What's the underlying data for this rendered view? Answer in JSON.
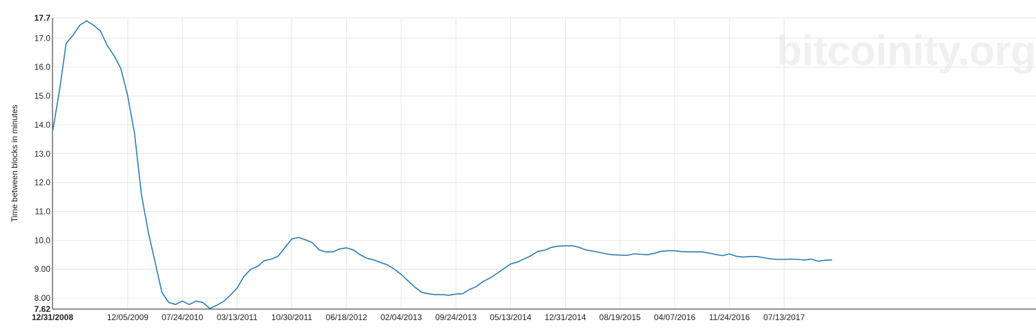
{
  "chart_data": {
    "type": "line",
    "title": "",
    "watermark": "bitcoinity.org",
    "ylabel": "Time between blocks in minutes",
    "xlabel": "",
    "ylim": [
      7.62,
      17.7
    ],
    "y_ticks": [
      {
        "value": 7.62,
        "label": "7.62",
        "bold": true
      },
      {
        "value": 8.0,
        "label": "8.00",
        "bold": false
      },
      {
        "value": 9.0,
        "label": "9.00",
        "bold": false
      },
      {
        "value": 10.0,
        "label": "10.0",
        "bold": false
      },
      {
        "value": 11.0,
        "label": "11.0",
        "bold": false
      },
      {
        "value": 12.0,
        "label": "12.0",
        "bold": false
      },
      {
        "value": 13.0,
        "label": "13.0",
        "bold": false
      },
      {
        "value": 14.0,
        "label": "14.0",
        "bold": false
      },
      {
        "value": 15.0,
        "label": "15.0",
        "bold": false
      },
      {
        "value": 16.0,
        "label": "16.0",
        "bold": false
      },
      {
        "value": 17.0,
        "label": "17.0",
        "bold": false
      },
      {
        "value": 17.7,
        "label": "17.7",
        "bold": true
      }
    ],
    "x_ticks": [
      {
        "index": 0,
        "label": "12/31/2008",
        "bold": true
      },
      {
        "index": 11,
        "label": "12/05/2009",
        "bold": false
      },
      {
        "index": 19,
        "label": "07/24/2010",
        "bold": false
      },
      {
        "index": 27,
        "label": "03/13/2011",
        "bold": false
      },
      {
        "index": 35,
        "label": "10/30/2011",
        "bold": false
      },
      {
        "index": 43,
        "label": "06/18/2012",
        "bold": false
      },
      {
        "index": 51,
        "label": "02/04/2013",
        "bold": false
      },
      {
        "index": 59,
        "label": "09/24/2013",
        "bold": false
      },
      {
        "index": 67,
        "label": "05/13/2014",
        "bold": false
      },
      {
        "index": 75,
        "label": "12/31/2014",
        "bold": false
      },
      {
        "index": 83,
        "label": "08/19/2015",
        "bold": false
      },
      {
        "index": 91,
        "label": "04/07/2016",
        "bold": false
      },
      {
        "index": 99,
        "label": "11/24/2016",
        "bold": false
      },
      {
        "index": 107,
        "label": "07/13/2017",
        "bold": false
      }
    ],
    "x_points": 115,
    "series": [
      {
        "name": "Time between blocks",
        "color": "#2b7bb9",
        "values": [
          13.75,
          15.15,
          16.82,
          17.1,
          17.45,
          17.6,
          17.45,
          17.25,
          16.75,
          16.4,
          15.95,
          15.0,
          13.7,
          11.6,
          10.3,
          9.25,
          8.2,
          7.85,
          7.78,
          7.9,
          7.78,
          7.9,
          7.85,
          7.64,
          7.75,
          7.88,
          8.1,
          8.35,
          8.75,
          9.0,
          9.1,
          9.3,
          9.35,
          9.45,
          9.75,
          10.05,
          10.1,
          10.02,
          9.92,
          9.67,
          9.6,
          9.6,
          9.7,
          9.74,
          9.67,
          9.5,
          9.38,
          9.32,
          9.23,
          9.15,
          9.0,
          8.82,
          8.6,
          8.38,
          8.2,
          8.15,
          8.12,
          8.12,
          8.1,
          8.14,
          8.15,
          8.3,
          8.4,
          8.58,
          8.7,
          8.85,
          9.02,
          9.18,
          9.25,
          9.36,
          9.47,
          9.62,
          9.66,
          9.76,
          9.8,
          9.81,
          9.81,
          9.76,
          9.67,
          9.63,
          9.58,
          9.53,
          9.5,
          9.49,
          9.48,
          9.53,
          9.52,
          9.5,
          9.55,
          9.62,
          9.64,
          9.64,
          9.61,
          9.6,
          9.6,
          9.6,
          9.56,
          9.51,
          9.47,
          9.53,
          9.45,
          9.42,
          9.44,
          9.44,
          9.4,
          9.36,
          9.34,
          9.34,
          9.35,
          9.34,
          9.32,
          9.35,
          9.28,
          9.31,
          9.32
        ]
      }
    ],
    "grid": true,
    "legend": "none"
  },
  "colors": {
    "line": "#2b7bb9",
    "grid": "#e6e6e6",
    "axis": "#222222",
    "watermark": "#f0f0f0"
  }
}
